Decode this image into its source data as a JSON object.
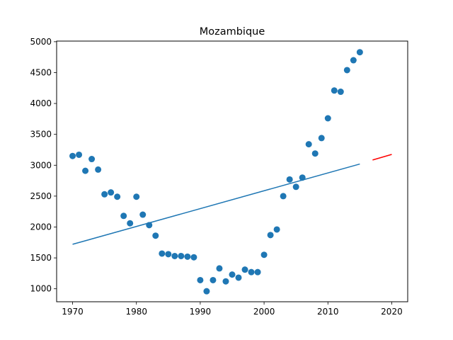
{
  "chart_data": {
    "type": "scatter",
    "title": "Mozambique",
    "xlabel": "",
    "ylabel": "",
    "xlim": [
      1967.5,
      2022.5
    ],
    "ylim": [
      790,
      5010
    ],
    "xticks": [
      1970,
      1980,
      1990,
      2000,
      2010,
      2020
    ],
    "yticks": [
      1000,
      1500,
      2000,
      2500,
      3000,
      3500,
      4000,
      4500,
      5000
    ],
    "grid": false,
    "colors": {
      "points": "#1f77b4",
      "fit": "#1f77b4",
      "forecast": "#ff0000"
    },
    "points": {
      "x": [
        1970,
        1971,
        1972,
        1973,
        1974,
        1975,
        1976,
        1977,
        1978,
        1979,
        1980,
        1981,
        1982,
        1983,
        1984,
        1985,
        1986,
        1987,
        1988,
        1989,
        1990,
        1991,
        1992,
        1993,
        1994,
        1995,
        1996,
        1997,
        1998,
        1999,
        2000,
        2001,
        2002,
        2003,
        2004,
        2005,
        2006,
        2007,
        2008,
        2009,
        2010,
        2011,
        2012,
        2013,
        2014,
        2015
      ],
      "y": [
        3150,
        3170,
        2910,
        3100,
        2930,
        2530,
        2560,
        2490,
        2180,
        2060,
        2490,
        2200,
        2030,
        1860,
        1570,
        1560,
        1530,
        1530,
        1520,
        1510,
        1140,
        960,
        1140,
        1330,
        1120,
        1230,
        1180,
        1310,
        1270,
        1270,
        1550,
        1870,
        1960,
        2500,
        2770,
        2650,
        2800,
        3340,
        3190,
        3440,
        3760,
        4210,
        4190,
        4540,
        4700,
        4830
      ]
    },
    "fit_line": {
      "x": [
        1970,
        2015
      ],
      "y": [
        1720,
        3020
      ]
    },
    "forecast_line": {
      "x": [
        2017,
        2020
      ],
      "y": [
        3085,
        3175
      ]
    }
  }
}
